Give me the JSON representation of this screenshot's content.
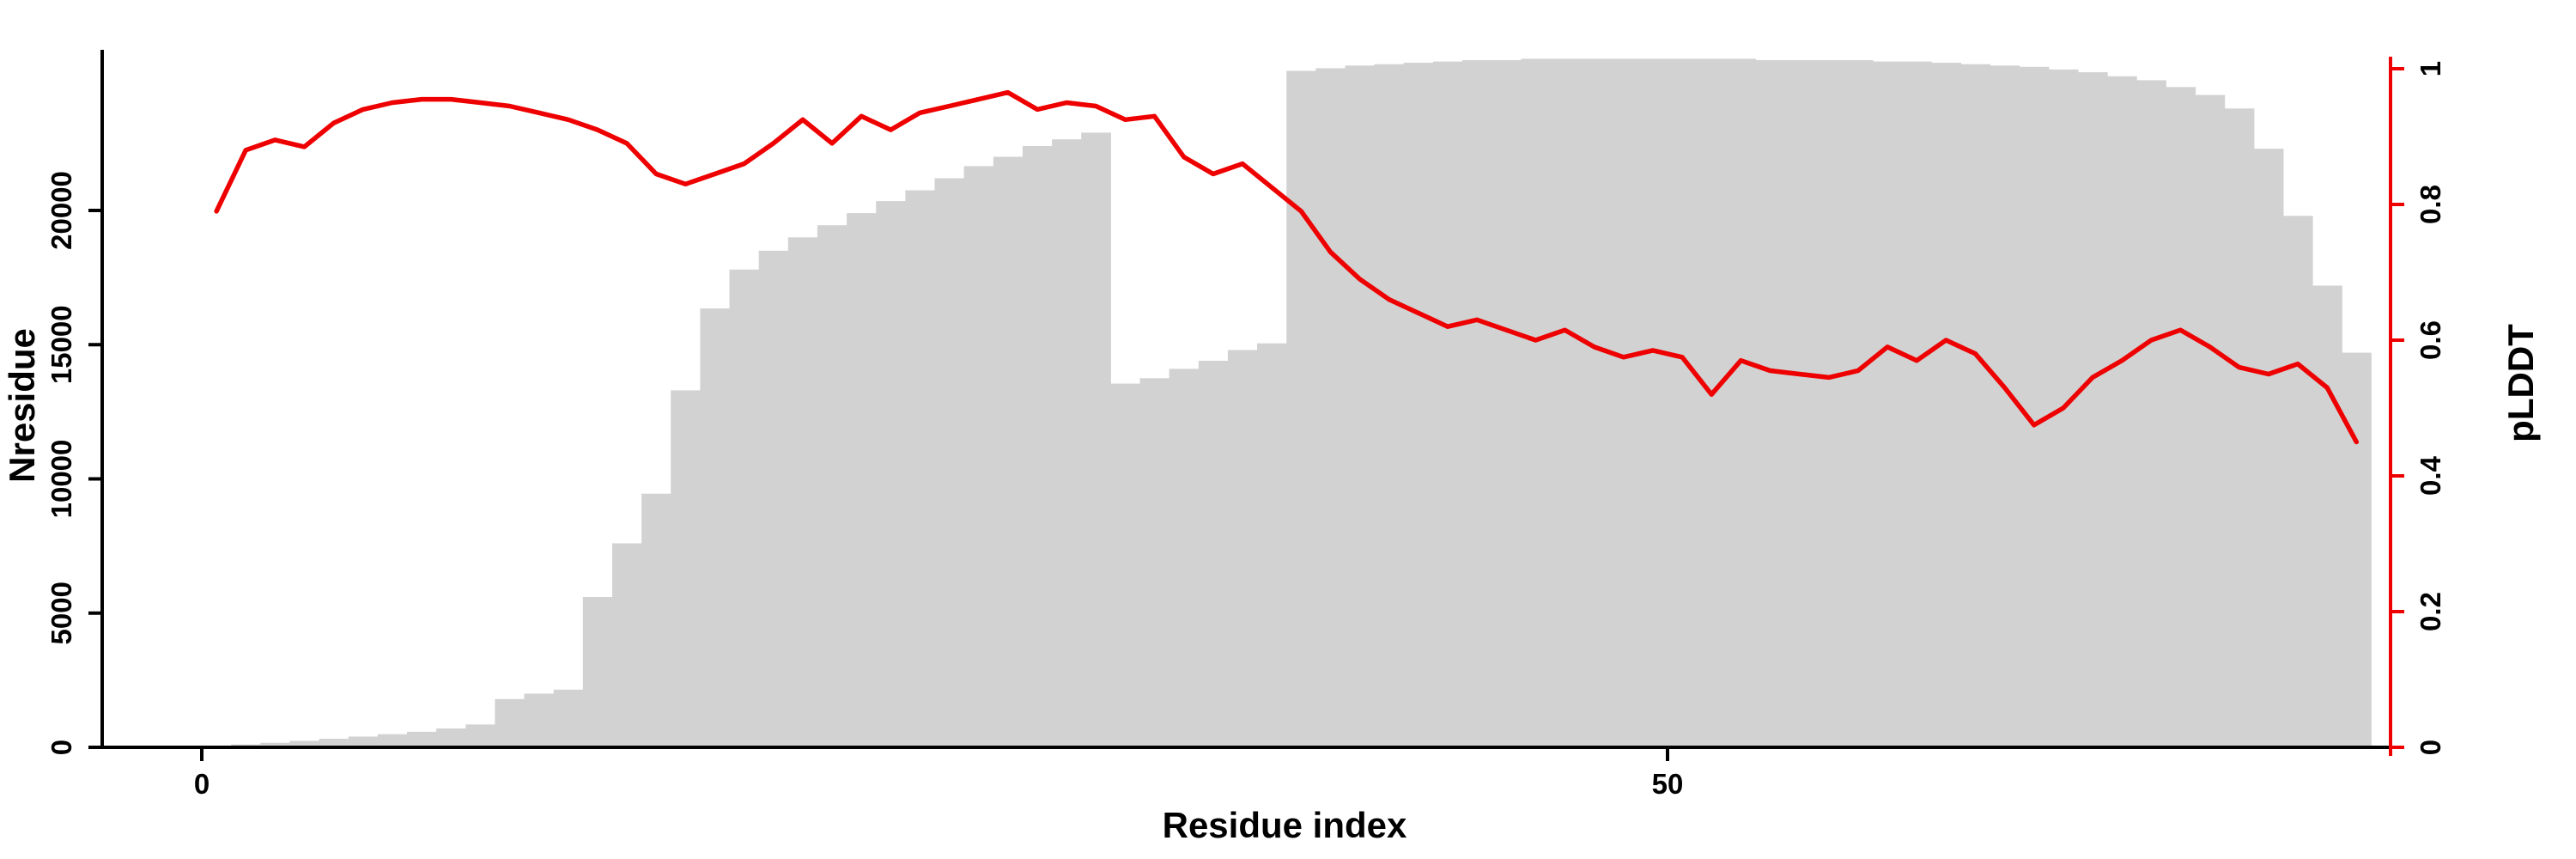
{
  "figure": {
    "xlabel": "Residue index",
    "ylabel_left": "Nresidue",
    "ylabel_right": "pLDDT",
    "background": "#ffffff"
  },
  "chart_data": {
    "type": "bar+line",
    "title": "",
    "xlabel": "Residue index",
    "x_name": "residue_index",
    "grid": false,
    "legend": "none",
    "x_axis": {
      "ticks": [
        0,
        50
      ],
      "range": [
        0,
        75
      ]
    },
    "left_axis": {
      "label": "Nresidue",
      "ticks": [
        0,
        5000,
        10000,
        15000,
        20000
      ],
      "range": [
        0,
        26000
      ],
      "color": "#000000"
    },
    "right_axis": {
      "label": "pLDDT",
      "ticks": [
        0,
        0.2,
        0.4,
        0.6,
        0.8,
        1
      ],
      "range": [
        0,
        1
      ],
      "color": "#ee0000"
    },
    "x": [
      1,
      2,
      3,
      4,
      5,
      6,
      7,
      8,
      9,
      10,
      11,
      12,
      13,
      14,
      15,
      16,
      17,
      18,
      19,
      20,
      21,
      22,
      23,
      24,
      25,
      26,
      27,
      28,
      29,
      30,
      31,
      32,
      33,
      34,
      35,
      36,
      37,
      38,
      39,
      40,
      41,
      42,
      43,
      44,
      45,
      46,
      47,
      48,
      49,
      50,
      51,
      52,
      53,
      54,
      55,
      56,
      57,
      58,
      59,
      60,
      61,
      62,
      63,
      64,
      65,
      66,
      67,
      68,
      69,
      70,
      71,
      72,
      73,
      74
    ],
    "series": [
      {
        "name": "Nresidue",
        "type": "bar",
        "axis": "left",
        "color": "#d2d2d2",
        "values": [
          60,
          110,
          170,
          240,
          320,
          400,
          490,
          580,
          700,
          850,
          1800,
          2000,
          2150,
          5600,
          7600,
          9450,
          13300,
          16350,
          17800,
          18500,
          19000,
          19450,
          19900,
          20350,
          20750,
          21200,
          21650,
          22000,
          22400,
          22650,
          22900,
          13550,
          13750,
          14100,
          14400,
          14800,
          15050,
          25200,
          25300,
          25400,
          25450,
          25500,
          25550,
          25600,
          25600,
          25650,
          25650,
          25650,
          25650,
          25650,
          25650,
          25650,
          25650,
          25600,
          25600,
          25600,
          25600,
          25550,
          25550,
          25500,
          25450,
          25400,
          25350,
          25250,
          25150,
          25000,
          24850,
          24600,
          24300,
          23800,
          22300,
          19800,
          17200,
          14700
        ]
      },
      {
        "name": "pLDDT",
        "type": "line",
        "axis": "right",
        "color": "#ee0000",
        "values": [
          0.79,
          0.88,
          0.895,
          0.885,
          0.92,
          0.94,
          0.95,
          0.955,
          0.955,
          0.95,
          0.945,
          0.935,
          0.925,
          0.91,
          0.89,
          0.845,
          0.83,
          0.845,
          0.86,
          0.89,
          0.925,
          0.89,
          0.93,
          0.91,
          0.935,
          0.945,
          0.955,
          0.965,
          0.94,
          0.95,
          0.945,
          0.925,
          0.93,
          0.87,
          0.845,
          0.86,
          0.825,
          0.79,
          0.73,
          0.69,
          0.66,
          0.64,
          0.62,
          0.63,
          0.615,
          0.6,
          0.615,
          0.59,
          0.575,
          0.585,
          0.575,
          0.52,
          0.57,
          0.555,
          0.55,
          0.545,
          0.555,
          0.59,
          0.57,
          0.6,
          0.58,
          0.53,
          0.475,
          0.5,
          0.545,
          0.57,
          0.6,
          0.615,
          0.59,
          0.56,
          0.55,
          0.565,
          0.53,
          0.45
        ]
      }
    ]
  }
}
